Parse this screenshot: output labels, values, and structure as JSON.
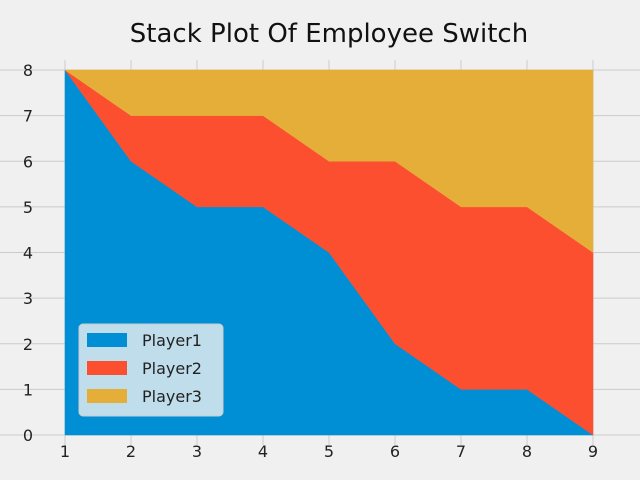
{
  "chart_data": {
    "type": "area",
    "stacked": true,
    "title": "Stack Plot Of Employee Switch",
    "xlabel": "",
    "ylabel": "",
    "x": [
      1,
      2,
      3,
      4,
      5,
      6,
      7,
      8,
      9
    ],
    "xlim": [
      1,
      9
    ],
    "ylim": [
      0,
      8
    ],
    "xticks": [
      1,
      2,
      3,
      4,
      5,
      6,
      7,
      8,
      9
    ],
    "yticks": [
      0,
      1,
      2,
      3,
      4,
      5,
      6,
      7,
      8
    ],
    "grid": true,
    "legend_position": "lower-left",
    "series": [
      {
        "name": "Player1",
        "color": "#008fd5",
        "values": [
          8,
          6,
          5,
          5,
          4,
          2,
          1,
          1,
          0
        ]
      },
      {
        "name": "Player2",
        "color": "#fc4f30",
        "values": [
          0,
          1,
          2,
          2,
          2,
          4,
          4,
          4,
          4
        ]
      },
      {
        "name": "Player3",
        "color": "#e5ae38",
        "values": [
          0,
          1,
          1,
          1,
          2,
          2,
          3,
          3,
          4
        ]
      }
    ]
  },
  "colors": {
    "background": "#f0f0f0",
    "grid": "#cbcbcb"
  }
}
